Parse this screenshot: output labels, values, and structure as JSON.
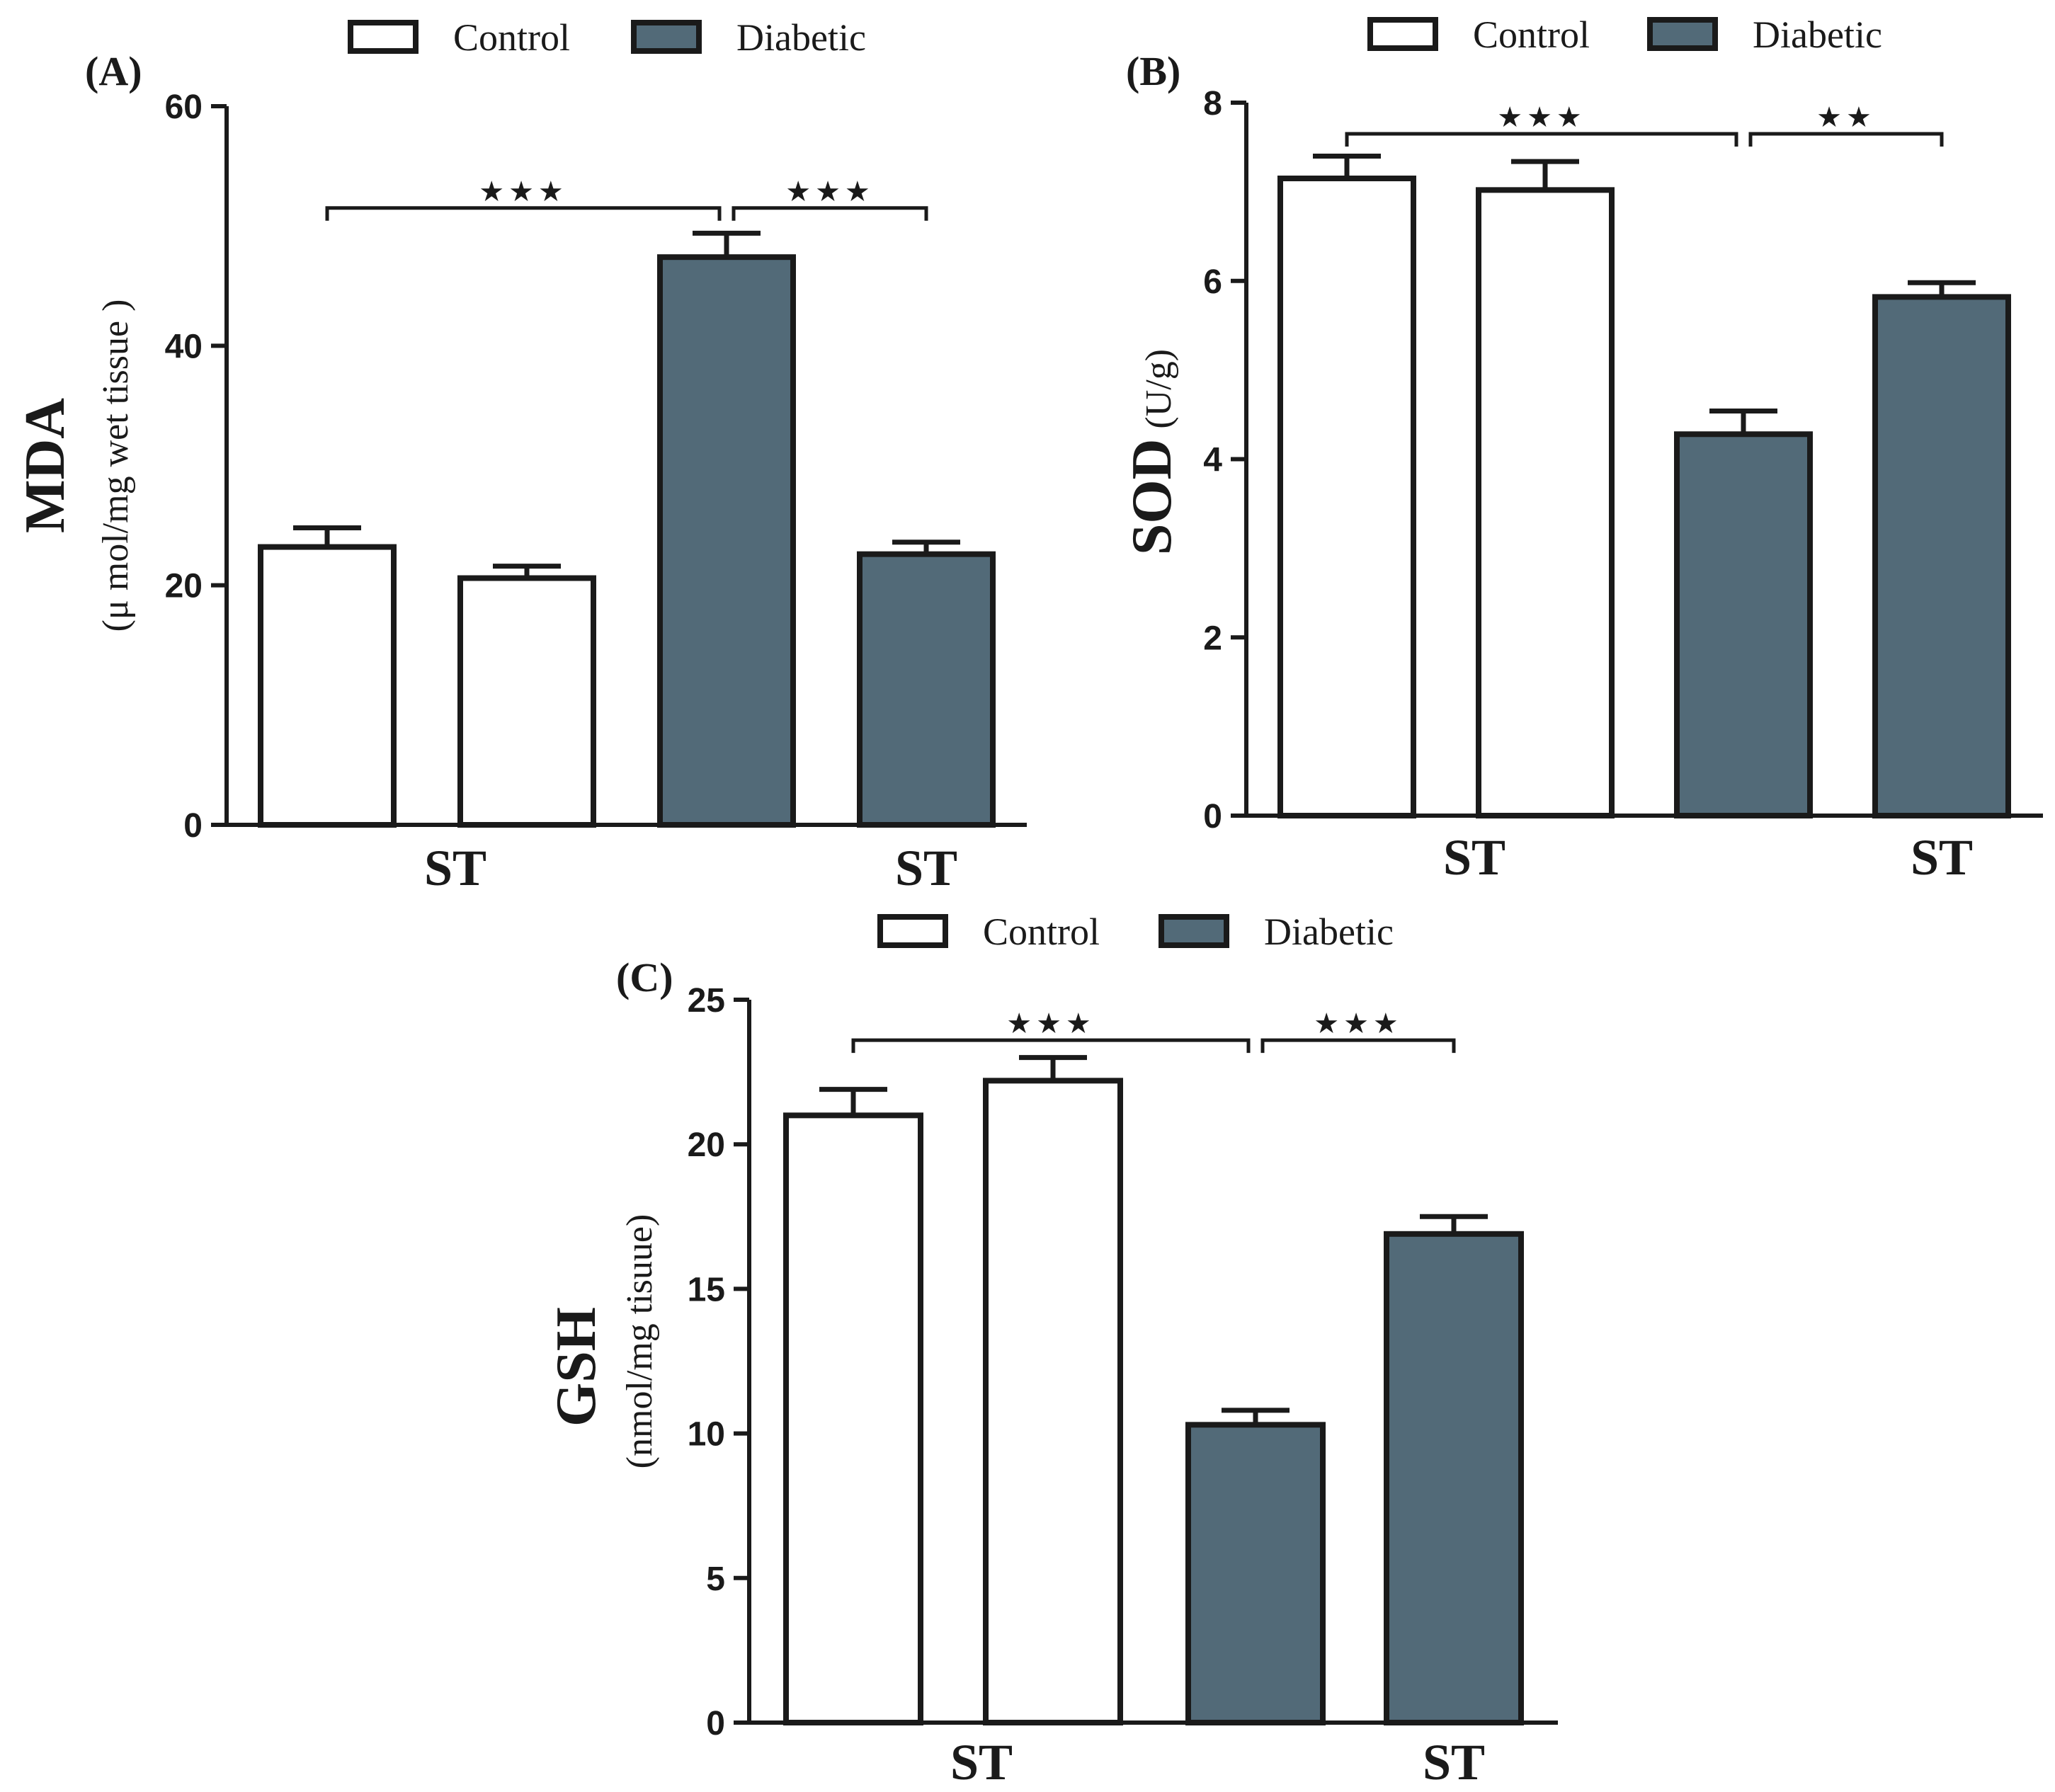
{
  "colors": {
    "control": "#ffffff",
    "diabetic": "#526a78",
    "ink": "#1a1a1a"
  },
  "legend": [
    {
      "name": "Control",
      "color": "#ffffff"
    },
    {
      "name": "Diabetic",
      "color": "#526a78"
    }
  ],
  "chart_data": [
    {
      "panel": "(A)",
      "type": "bar",
      "ylabel_main": "MDA",
      "ylabel_sub": "(μ mol/mg wet tissue )",
      "ylim": [
        0,
        60
      ],
      "yticks": [
        0,
        20,
        40,
        60
      ],
      "ytick_labels": [
        "0",
        "20",
        "40",
        "60"
      ],
      "group_labels": [
        "ST",
        "ST"
      ],
      "bars": [
        {
          "group": "Control",
          "value": 23.2,
          "error": 1.6
        },
        {
          "group": "Control",
          "value": 20.6,
          "error": 1.0
        },
        {
          "group": "Diabetic",
          "value": 47.4,
          "error": 2.0
        },
        {
          "group": "Diabetic",
          "value": 22.6,
          "error": 1.0
        }
      ],
      "significance": [
        {
          "from": 0,
          "to": 2,
          "label": "★★★"
        },
        {
          "from": 2,
          "to": 3,
          "label": "★★★"
        }
      ],
      "bracket_value": 51.5
    },
    {
      "panel": "(B)",
      "type": "bar",
      "ylabel_main": "SOD",
      "ylabel_sub": "(U/g)",
      "ylim": [
        0,
        8
      ],
      "yticks": [
        0,
        2,
        4,
        6,
        8
      ],
      "ytick_labels": [
        "0",
        "2",
        "4",
        "6",
        "8"
      ],
      "group_labels": [
        "ST",
        "ST"
      ],
      "bars": [
        {
          "group": "Control",
          "value": 7.15,
          "error": 0.25
        },
        {
          "group": "Control",
          "value": 7.02,
          "error": 0.32
        },
        {
          "group": "Diabetic",
          "value": 4.28,
          "error": 0.26
        },
        {
          "group": "Diabetic",
          "value": 5.82,
          "error": 0.16
        }
      ],
      "significance": [
        {
          "from": 0,
          "to": 2,
          "label": "★★★"
        },
        {
          "from": 2,
          "to": 3,
          "label": "★★"
        }
      ],
      "bracket_value": 7.65
    },
    {
      "panel": "(C)",
      "type": "bar",
      "ylabel_main": "GSH",
      "ylabel_sub": "(nmol/mg tisuue)",
      "ylim": [
        0,
        25
      ],
      "yticks": [
        0,
        5,
        10,
        15,
        20,
        25
      ],
      "ytick_labels": [
        "0",
        "5",
        "10",
        "15",
        "20",
        "25"
      ],
      "group_labels": [
        "ST",
        "ST"
      ],
      "bars": [
        {
          "group": "Control",
          "value": 21.0,
          "error": 0.9
        },
        {
          "group": "Control",
          "value": 22.2,
          "error": 0.8
        },
        {
          "group": "Diabetic",
          "value": 10.3,
          "error": 0.5
        },
        {
          "group": "Diabetic",
          "value": 16.9,
          "error": 0.6
        }
      ],
      "significance": [
        {
          "from": 0,
          "to": 2,
          "label": "★★★"
        },
        {
          "from": 2,
          "to": 3,
          "label": "★★★"
        }
      ],
      "bracket_value": 23.6
    }
  ]
}
